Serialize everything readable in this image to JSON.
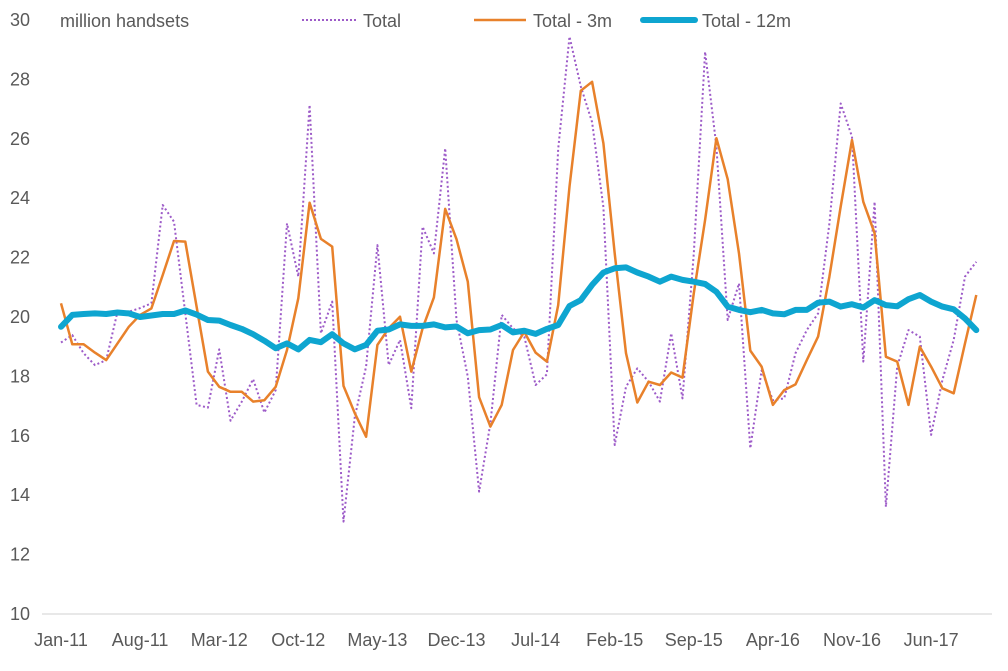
{
  "chart_data": {
    "type": "line",
    "title": "",
    "ylabel": "million handsets",
    "xlabel": "",
    "ylim": [
      10,
      30
    ],
    "yticks": [
      10,
      12,
      14,
      16,
      18,
      20,
      22,
      24,
      26,
      28,
      30
    ],
    "grid": false,
    "legend_position": "top",
    "x_tick_labels": [
      "Jan-11",
      "Aug-11",
      "Mar-12",
      "Oct-12",
      "May-13",
      "Dec-13",
      "Jul-14",
      "Feb-15",
      "Sep-15",
      "Apr-16",
      "Nov-16",
      "Jun-17"
    ],
    "x_tick_every_months": 7,
    "x_start": "Jan-11",
    "series": [
      {
        "name": "Total",
        "color": "#9d5bc8",
        "style": "dotted",
        "values": [
          19.14,
          19.39,
          18.78,
          18.38,
          18.55,
          20.18,
          20.18,
          20.3,
          20.46,
          23.77,
          23.21,
          20.12,
          17.04,
          16.95,
          18.91,
          16.51,
          17.15,
          17.91,
          16.78,
          17.54,
          23.15,
          21.36,
          27.14,
          19.45,
          20.52,
          13.11,
          16.64,
          18.33,
          22.42,
          18.38,
          19.23,
          16.93,
          23.04,
          22.14,
          25.68,
          19.9,
          17.99,
          14.12,
          16.42,
          20.07,
          19.62,
          19.34,
          17.71,
          18.07,
          25.66,
          29.44,
          27.76,
          26.56,
          23.7,
          15.69,
          17.65,
          18.27,
          17.82,
          17.15,
          19.45,
          17.26,
          22.14,
          28.93,
          25.74,
          19.9,
          21.13,
          15.58,
          18.2,
          17.2,
          17.26,
          18.78,
          19.56,
          20.12,
          23.15,
          27.19,
          26.07,
          18.5,
          23.88,
          13.61,
          18.33,
          19.56,
          19.34,
          16.03,
          17.88,
          19.23,
          21.36,
          21.86
        ]
      },
      {
        "name": "Total - 3m",
        "color": "#e8812b",
        "style": "solid",
        "values": [
          20.46,
          19.08,
          19.08,
          18.8,
          18.55,
          19.11,
          19.67,
          20.07,
          20.29,
          21.41,
          22.56,
          22.54,
          20.35,
          18.16,
          17.65,
          17.48,
          17.48,
          17.15,
          17.2,
          17.65,
          18.89,
          20.63,
          23.85,
          22.63,
          22.37,
          17.68,
          16.76,
          15.97,
          19.06,
          19.62,
          20.01,
          18.16,
          19.62,
          20.66,
          23.64,
          22.62,
          21.19,
          17.3,
          16.31,
          17.04,
          18.89,
          19.5,
          18.8,
          18.5,
          20.4,
          24.39,
          27.62,
          27.92,
          25.85,
          22.14,
          18.78,
          17.12,
          17.82,
          17.71,
          18.13,
          17.96,
          20.8,
          23.27,
          26.02,
          24.64,
          22.14,
          18.87,
          18.33,
          17.04,
          17.54,
          17.73,
          18.55,
          19.34,
          21.36,
          23.72,
          25.96,
          23.88,
          22.82,
          18.66,
          18.5,
          17.04,
          19.0,
          18.33,
          17.6,
          17.43,
          19.11,
          20.74
        ]
      },
      {
        "name": "Total - 12m",
        "color": "#0ea5d0",
        "style": "thick",
        "values": [
          19.67,
          20.07,
          20.1,
          20.12,
          20.1,
          20.15,
          20.12,
          20.0,
          20.05,
          20.1,
          20.1,
          20.22,
          20.08,
          19.9,
          19.88,
          19.73,
          19.6,
          19.42,
          19.2,
          18.95,
          19.11,
          18.91,
          19.23,
          19.15,
          19.42,
          19.11,
          18.91,
          19.06,
          19.54,
          19.58,
          19.75,
          19.7,
          19.7,
          19.75,
          19.65,
          19.68,
          19.45,
          19.56,
          19.58,
          19.73,
          19.48,
          19.54,
          19.43,
          19.6,
          19.73,
          20.37,
          20.57,
          21.08,
          21.5,
          21.64,
          21.67,
          21.5,
          21.36,
          21.19,
          21.36,
          21.25,
          21.19,
          21.11,
          20.85,
          20.35,
          20.24,
          20.16,
          20.24,
          20.12,
          20.09,
          20.24,
          20.24,
          20.48,
          20.52,
          20.35,
          20.43,
          20.32,
          20.57,
          20.4,
          20.36,
          20.6,
          20.74,
          20.52,
          20.35,
          20.26,
          19.95,
          19.56
        ]
      }
    ]
  }
}
